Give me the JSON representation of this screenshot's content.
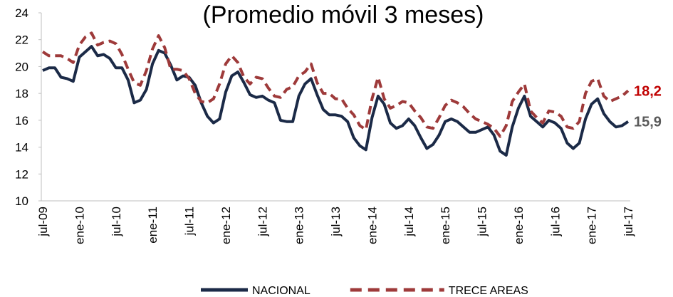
{
  "chart_data": {
    "type": "line",
    "title": "(Promedio móvil 3 meses)",
    "categories": [
      "jul-09",
      null,
      null,
      null,
      null,
      null,
      "ene-10",
      null,
      null,
      null,
      null,
      null,
      "jul-10",
      null,
      null,
      null,
      null,
      null,
      "ene-11",
      null,
      null,
      null,
      null,
      null,
      "jul-11",
      null,
      null,
      null,
      null,
      null,
      "ene-12",
      null,
      null,
      null,
      null,
      null,
      "jul-12",
      null,
      null,
      null,
      null,
      null,
      "ene-13",
      null,
      null,
      null,
      null,
      null,
      "jul-13",
      null,
      null,
      null,
      null,
      null,
      "ene-14",
      null,
      null,
      null,
      null,
      null,
      "jul-14",
      null,
      null,
      null,
      null,
      null,
      "ene-15",
      null,
      null,
      null,
      null,
      null,
      "jul-15",
      null,
      null,
      null,
      null,
      null,
      "ene-16",
      null,
      null,
      null,
      null,
      null,
      "jul-16",
      null,
      null,
      null,
      null,
      null,
      "ene-17",
      null,
      null,
      null,
      null,
      null,
      "jul-17"
    ],
    "series": [
      {
        "name": "NACIONAL",
        "color": "#1b2a47",
        "dashed": false,
        "label_color": "#595959",
        "values": [
          19.7,
          19.9,
          19.9,
          19.2,
          19.1,
          18.9,
          20.7,
          21.1,
          21.5,
          20.8,
          20.9,
          20.6,
          19.9,
          19.9,
          19.0,
          17.3,
          17.5,
          18.3,
          20.2,
          21.2,
          21.0,
          20.1,
          19.0,
          19.3,
          19.2,
          18.6,
          17.3,
          16.3,
          15.8,
          16.1,
          18.1,
          19.3,
          19.6,
          18.8,
          17.9,
          17.7,
          17.8,
          17.5,
          17.3,
          16.0,
          15.9,
          15.9,
          17.8,
          18.7,
          19.1,
          17.9,
          16.8,
          16.4,
          16.4,
          16.3,
          15.9,
          14.7,
          14.1,
          13.8,
          16.2,
          17.8,
          17.2,
          15.8,
          15.4,
          15.6,
          16.1,
          15.6,
          14.7,
          13.9,
          14.2,
          14.9,
          15.9,
          16.1,
          15.9,
          15.5,
          15.1,
          15.1,
          15.3,
          15.5,
          14.9,
          13.7,
          13.4,
          15.5,
          16.9,
          17.8,
          16.3,
          15.9,
          15.5,
          16.0,
          15.8,
          15.4,
          14.3,
          13.9,
          14.3,
          16.1,
          17.2,
          17.6,
          16.5,
          15.9,
          15.5,
          15.6,
          15.9
        ],
        "value_labels": [
          null,
          null,
          null,
          null,
          null,
          null,
          null,
          null,
          null,
          null,
          null,
          null,
          null,
          null,
          null,
          null,
          null,
          null,
          null,
          null,
          null,
          null,
          null,
          null,
          null,
          null,
          null,
          null,
          null,
          null,
          null,
          null,
          null,
          null,
          null,
          null,
          null,
          null,
          null,
          null,
          null,
          null,
          null,
          null,
          null,
          null,
          null,
          null,
          null,
          null,
          null,
          null,
          null,
          null,
          null,
          null,
          null,
          null,
          null,
          null,
          null,
          null,
          null,
          null,
          null,
          null,
          null,
          null,
          null,
          null,
          null,
          null,
          null,
          null,
          null,
          null,
          null,
          null,
          null,
          null,
          null,
          null,
          null,
          null,
          null,
          null,
          null,
          null,
          null,
          null,
          null,
          null,
          null,
          null,
          null,
          null,
          "15,9"
        ]
      },
      {
        "name": "TRECE AREAS",
        "color": "#9e3a3a",
        "dashed": true,
        "label_color": "#c00000",
        "values": [
          21.1,
          20.8,
          20.8,
          20.8,
          20.6,
          20.3,
          21.6,
          22.2,
          22.5,
          21.6,
          21.8,
          21.9,
          21.7,
          20.9,
          19.8,
          18.8,
          18.6,
          19.7,
          21.3,
          22.3,
          21.4,
          19.8,
          19.8,
          19.7,
          19.1,
          18.0,
          17.4,
          17.3,
          17.6,
          18.7,
          20.2,
          20.8,
          20.3,
          19.2,
          18.7,
          19.2,
          19.1,
          18.4,
          17.8,
          17.7,
          18.3,
          18.5,
          19.3,
          19.6,
          20.2,
          18.8,
          18.0,
          18.0,
          17.6,
          17.6,
          16.9,
          16.4,
          15.6,
          15.3,
          17.6,
          19.2,
          17.6,
          16.9,
          17.1,
          17.4,
          17.3,
          16.7,
          16.2,
          15.5,
          15.4,
          16.2,
          17.1,
          17.5,
          17.3,
          17.0,
          16.5,
          16.1,
          15.9,
          15.7,
          15.4,
          14.8,
          15.6,
          17.4,
          18.1,
          18.7,
          16.7,
          16.2,
          15.8,
          16.7,
          16.6,
          16.3,
          15.5,
          15.4,
          15.9,
          18.0,
          18.9,
          19.1,
          17.8,
          17.4,
          17.6,
          17.8,
          18.2
        ],
        "value_labels": [
          null,
          null,
          null,
          null,
          null,
          null,
          null,
          null,
          null,
          null,
          null,
          null,
          null,
          null,
          null,
          null,
          null,
          null,
          null,
          null,
          null,
          null,
          null,
          null,
          null,
          null,
          null,
          null,
          null,
          null,
          null,
          null,
          null,
          null,
          null,
          null,
          null,
          null,
          null,
          null,
          null,
          null,
          null,
          null,
          null,
          null,
          null,
          null,
          null,
          null,
          null,
          null,
          null,
          null,
          null,
          null,
          null,
          null,
          null,
          null,
          null,
          null,
          null,
          null,
          null,
          null,
          null,
          null,
          null,
          null,
          null,
          null,
          null,
          null,
          null,
          null,
          null,
          null,
          null,
          null,
          null,
          null,
          null,
          null,
          null,
          null,
          null,
          null,
          null,
          null,
          null,
          null,
          null,
          null,
          null,
          null,
          "18,2"
        ]
      }
    ],
    "ylim": [
      10,
      24
    ],
    "yticks": [
      10,
      12,
      14,
      16,
      18,
      20,
      22,
      24
    ],
    "grid": false,
    "legend": "bottom"
  }
}
